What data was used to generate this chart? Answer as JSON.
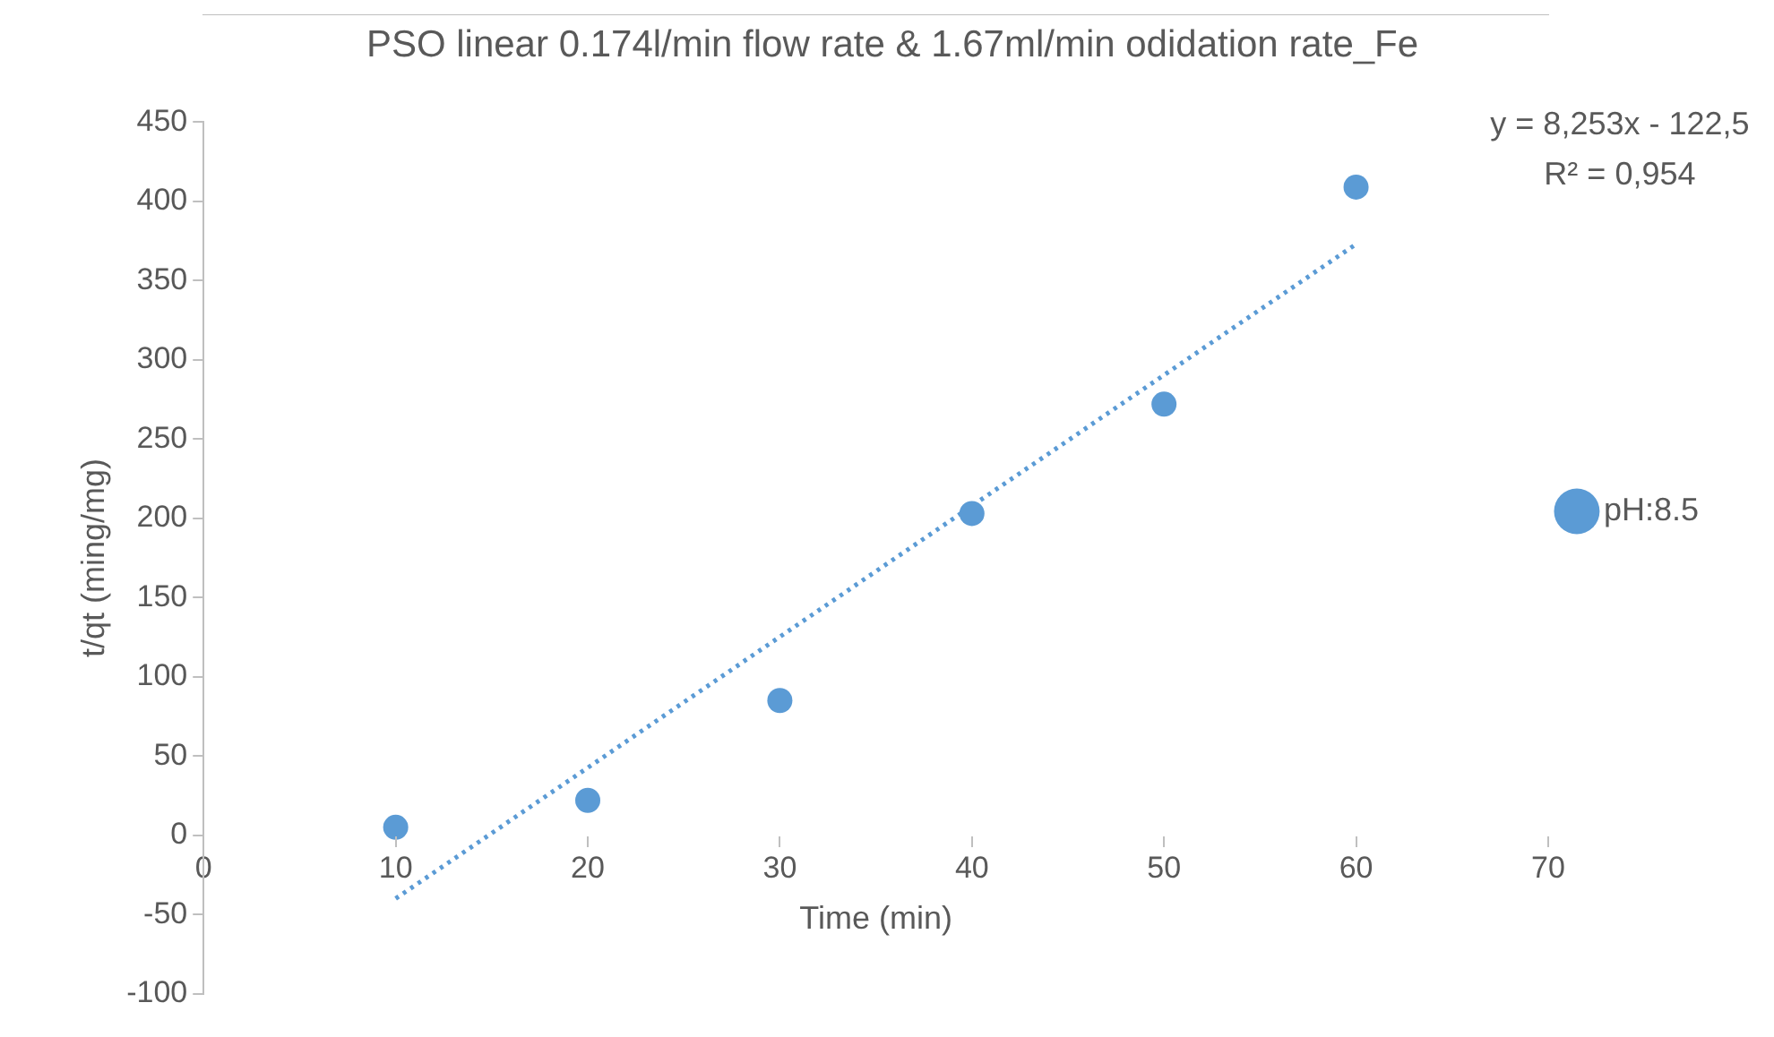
{
  "chart_data": {
    "type": "scatter",
    "title": "PSO linear 0.174l/min flow rate & 1.67ml/min odidation rate_Fe",
    "xlabel": "Time (min)",
    "ylabel": "t/qt (ming/mg)",
    "x": [
      10,
      20,
      30,
      40,
      50,
      60
    ],
    "series": [
      {
        "name": "pH:8.5",
        "color": "#5b9bd5",
        "values": [
          5,
          22,
          85,
          203,
          272,
          409
        ],
        "marker": "circle"
      },
      {
        "type": "line",
        "color": "#5b9bd5",
        "x": [
          10,
          60
        ],
        "values": [
          -40,
          373
        ],
        "line_style": "dotted",
        "marker": "none"
      }
    ],
    "xlim": [
      0,
      70
    ],
    "xticks": [
      0,
      10,
      20,
      30,
      40,
      50,
      60,
      70
    ],
    "ylim": [
      -100,
      450
    ],
    "yticks": [
      -100,
      -50,
      0,
      50,
      100,
      150,
      200,
      250,
      300,
      350,
      400,
      450
    ],
    "grid": false,
    "legend": "right",
    "annotations": [
      "y = 8,253x - 122,5",
      "R² = 0,954"
    ]
  }
}
